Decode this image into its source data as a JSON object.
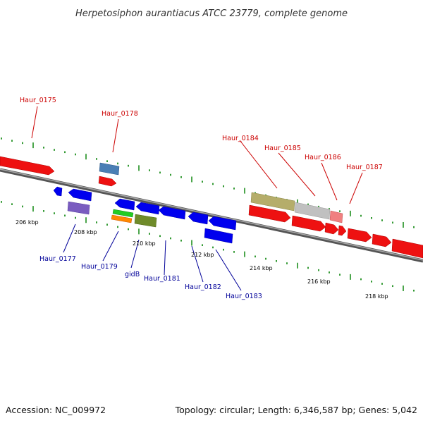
{
  "title": "Herpetosiphon aurantiacus ATCC 23779, complete genome",
  "footer": {
    "accession": "Accession: NC_009972",
    "summary": "Topology: circular; Length: 6,346,587 bp; Genes: 5,042"
  },
  "colors": {
    "forward_label": "#cc0000",
    "reverse_label": "#000099",
    "axis": "#808080",
    "tick": "#008000"
  },
  "axis_labels": [
    "206 kbp",
    "208 kbp",
    "210 kbp",
    "212 kbp",
    "214 kbp",
    "216 kbp",
    "218 kbp"
  ],
  "gene_labels": {
    "forward": [
      "Haur_0175",
      "Haur_0178",
      "Haur_0184",
      "Haur_0185",
      "Haur_0186",
      "Haur_0187"
    ],
    "reverse": [
      "Haur_0177",
      "Haur_0179",
      "gidB",
      "Haur_0181",
      "Haur_0182",
      "Haur_0183"
    ]
  }
}
